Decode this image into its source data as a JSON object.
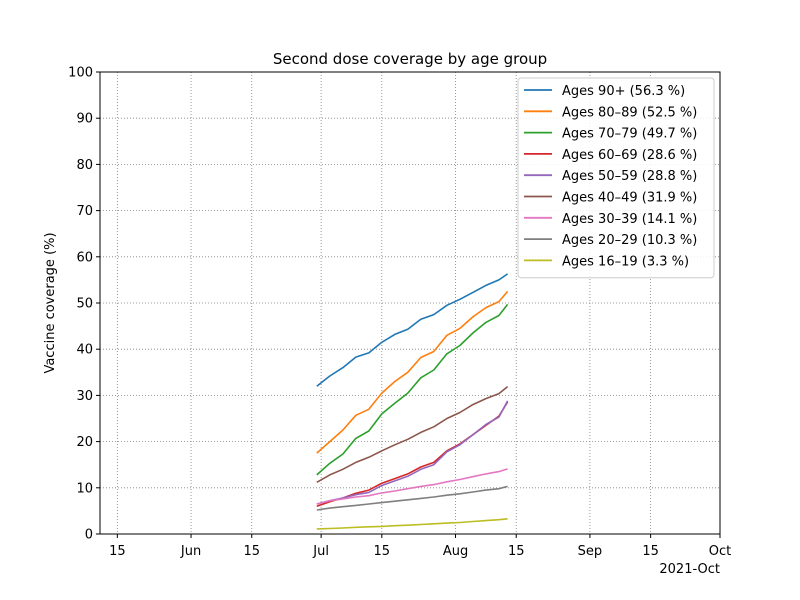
{
  "chart_data": {
    "type": "line",
    "title": "Second dose coverage by age group",
    "ylabel": "Vaccine coverage (%)",
    "xlabel": "",
    "x_offset_text": "2021-Oct",
    "ylim": [
      0,
      100
    ],
    "yticks": [
      0,
      10,
      20,
      30,
      40,
      50,
      60,
      70,
      80,
      90,
      100
    ],
    "xlim": [
      "2021-05-11",
      "2021-10-01"
    ],
    "xticks": [
      {
        "date": "2021-05-15",
        "label": "15"
      },
      {
        "date": "2021-06-01",
        "label": "Jun"
      },
      {
        "date": "2021-06-15",
        "label": "15"
      },
      {
        "date": "2021-07-01",
        "label": "Jul"
      },
      {
        "date": "2021-07-15",
        "label": "15"
      },
      {
        "date": "2021-08-01",
        "label": "Aug"
      },
      {
        "date": "2021-08-15",
        "label": "15"
      },
      {
        "date": "2021-09-01",
        "label": "Sep"
      },
      {
        "date": "2021-09-15",
        "label": "15"
      },
      {
        "date": "2021-10-01",
        "label": "Oct"
      }
    ],
    "grid": true,
    "legend_position": "top-right",
    "x": [
      "2021-06-30",
      "2021-07-03",
      "2021-07-06",
      "2021-07-09",
      "2021-07-12",
      "2021-07-15",
      "2021-07-18",
      "2021-07-21",
      "2021-07-24",
      "2021-07-27",
      "2021-07-30",
      "2021-08-02",
      "2021-08-05",
      "2021-08-08",
      "2021-08-11",
      "2021-08-13"
    ],
    "series": [
      {
        "name": "Ages 90+ (56.3 %)",
        "color": "#1f77b4",
        "values": [
          32.0,
          34.2,
          36.0,
          38.3,
          39.2,
          41.5,
          43.2,
          44.3,
          46.5,
          47.5,
          49.5,
          50.8,
          52.3,
          53.8,
          55.0,
          56.3
        ]
      },
      {
        "name": "Ages 80–89 (52.5 %)",
        "color": "#ff7f0e",
        "values": [
          17.5,
          20.0,
          22.5,
          25.7,
          27.0,
          30.5,
          33.0,
          35.0,
          38.2,
          39.5,
          43.0,
          44.5,
          47.0,
          49.0,
          50.3,
          52.5
        ]
      },
      {
        "name": "Ages 70–79 (49.7 %)",
        "color": "#2ca02c",
        "values": [
          12.8,
          15.3,
          17.3,
          20.7,
          22.3,
          26.0,
          28.3,
          30.5,
          33.8,
          35.5,
          39.0,
          40.8,
          43.5,
          45.8,
          47.3,
          49.7
        ]
      },
      {
        "name": "Ages 60–69 (28.6 %)",
        "color": "#d62728",
        "values": [
          6.0,
          7.0,
          7.8,
          8.8,
          9.5,
          11.0,
          12.0,
          13.0,
          14.5,
          15.5,
          18.0,
          19.5,
          21.5,
          23.5,
          25.5,
          28.6
        ]
      },
      {
        "name": "Ages 50–59 (28.8 %)",
        "color": "#9467bd",
        "values": [
          6.5,
          7.2,
          7.8,
          8.5,
          9.0,
          10.5,
          11.5,
          12.5,
          14.0,
          15.0,
          17.8,
          19.3,
          21.5,
          23.7,
          25.3,
          28.8
        ]
      },
      {
        "name": "Ages 40–49 (31.9 %)",
        "color": "#8c564b",
        "values": [
          11.2,
          12.8,
          14.0,
          15.5,
          16.6,
          18.0,
          19.3,
          20.5,
          22.0,
          23.2,
          25.0,
          26.3,
          28.0,
          29.3,
          30.4,
          31.9
        ]
      },
      {
        "name": "Ages 30–39 (14.1 %)",
        "color": "#e377c2",
        "values": [
          6.5,
          7.2,
          7.6,
          8.0,
          8.3,
          8.9,
          9.3,
          9.8,
          10.3,
          10.7,
          11.3,
          11.8,
          12.4,
          13.0,
          13.5,
          14.1
        ]
      },
      {
        "name": "Ages 20–29 (10.3 %)",
        "color": "#7f7f7f",
        "values": [
          5.2,
          5.6,
          5.9,
          6.2,
          6.5,
          6.8,
          7.1,
          7.4,
          7.7,
          8.0,
          8.4,
          8.7,
          9.1,
          9.5,
          9.8,
          10.3
        ]
      },
      {
        "name": "Ages 16–19 (3.3 %)",
        "color": "#bcbd22",
        "values": [
          1.1,
          1.2,
          1.3,
          1.45,
          1.55,
          1.65,
          1.8,
          1.9,
          2.05,
          2.2,
          2.35,
          2.5,
          2.7,
          2.9,
          3.1,
          3.3
        ]
      }
    ]
  }
}
